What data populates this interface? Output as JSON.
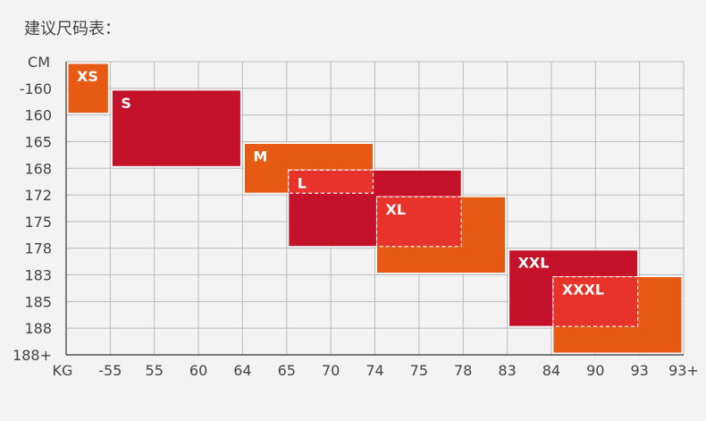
{
  "page": {
    "title": "建议尺码表："
  },
  "colors": {
    "background": "#f3f3f3",
    "grid": "#bbbbbb",
    "axis": "#333333",
    "orange": "#e65a14",
    "crimson": "#c4122a",
    "red": "#e8332b",
    "dashed_border": "#ffffff",
    "label_text": "#ffffff",
    "tick_text": "#444444"
  },
  "chart_data": {
    "type": "table",
    "title": "建议尺码表：",
    "y_unit_label": "CM",
    "x_unit_label": "KG",
    "y_ticks": [
      "-160",
      "160",
      "165",
      "168",
      "172",
      "175",
      "178",
      "183",
      "185",
      "188",
      "188+"
    ],
    "x_ticks": [
      "-55",
      "55",
      "60",
      "64",
      "65",
      "70",
      "74",
      "75",
      "78",
      "83",
      "84",
      "90",
      "93",
      "93+"
    ],
    "grid": true,
    "sizes": [
      {
        "label": "XS",
        "weight_from": "KG",
        "weight_to": "-55",
        "height_from": "CM",
        "height_to": "160",
        "color": "orange",
        "dashed": false
      },
      {
        "label": "S",
        "weight_from": "-55",
        "weight_to": "64",
        "height_from": "-160",
        "height_to": "168",
        "color": "crimson",
        "dashed": false
      },
      {
        "label": "M",
        "weight_from": "64",
        "weight_to": "74",
        "height_from": "165",
        "height_to": "172",
        "color": "orange",
        "dashed": false
      },
      {
        "label": "L",
        "weight_from": "65",
        "weight_to": "78",
        "height_from": "168",
        "height_to": "178",
        "color": "crimson",
        "dashed": false
      },
      {
        "label": "XL",
        "weight_from": "74",
        "weight_to": "83",
        "height_from": "172",
        "height_to": "183",
        "color": "orange",
        "dashed": false
      },
      {
        "label": "XXL",
        "weight_from": "83",
        "weight_to": "93",
        "height_from": "178",
        "height_to": "188",
        "color": "crimson",
        "dashed": false
      },
      {
        "label": "XXXL",
        "weight_from": "84",
        "weight_to": "93+",
        "height_from": "183",
        "height_to": "188+",
        "color": "orange",
        "dashed": false
      }
    ],
    "overlaps": [
      {
        "weight_from": "65",
        "weight_to": "74",
        "height_from": "168",
        "height_to": "172",
        "color": "red",
        "dashed": true
      },
      {
        "weight_from": "74",
        "weight_to": "78",
        "height_from": "172",
        "height_to": "178",
        "color": "red",
        "dashed": true
      },
      {
        "weight_from": "84",
        "weight_to": "93",
        "height_from": "183",
        "height_to": "188",
        "color": "red",
        "dashed": true
      }
    ]
  }
}
